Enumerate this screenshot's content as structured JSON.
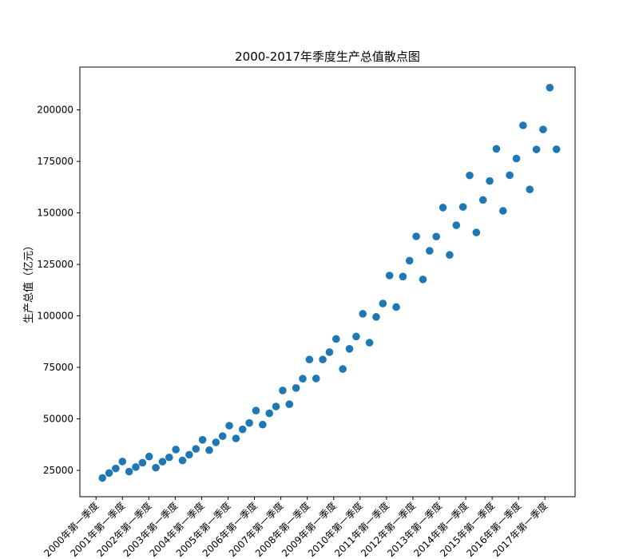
{
  "chart_data": {
    "type": "scatter",
    "title": "2000-2017年季度生产总值散点图",
    "xlabel": "",
    "ylabel": "生产总值（亿元）",
    "grid": false,
    "ylim": [
      12200,
      220800
    ],
    "yticks": [
      25000,
      50000,
      75000,
      100000,
      125000,
      150000,
      175000,
      200000
    ],
    "xticks": [
      "2000年第一季度",
      "2001年第一季度",
      "2002年第一季度",
      "2003年第一季度",
      "2004年第一季度",
      "2005年第一季度",
      "2006年第一季度",
      "2007年第一季度",
      "2008年第一季度",
      "2009年第一季度",
      "2010年第一季度",
      "2011年第一季度",
      "2012年第一季度",
      "2013年第一季度",
      "2014年第一季度",
      "2015年第一季度",
      "2016年第一季度",
      "2017年第一季度"
    ],
    "values": [
      21300,
      23700,
      25900,
      29300,
      24400,
      26600,
      28700,
      31700,
      26300,
      29200,
      31300,
      35100,
      29800,
      32600,
      35400,
      39800,
      34800,
      38600,
      41600,
      46700,
      40500,
      44900,
      48000,
      54000,
      47200,
      52700,
      56000,
      63800,
      57100,
      65000,
      69500,
      78800,
      69600,
      78800,
      82400,
      88800,
      74200,
      84000,
      90000,
      101000,
      87000,
      99500,
      106000,
      119600,
      104300,
      119100,
      126800,
      138600,
      117700,
      131600,
      138500,
      152600,
      129600,
      144000,
      152900,
      168200,
      140500,
      156300,
      165500,
      181100,
      151000,
      168300,
      176400,
      192500,
      161400,
      180800,
      190500,
      210800,
      180900
    ]
  }
}
